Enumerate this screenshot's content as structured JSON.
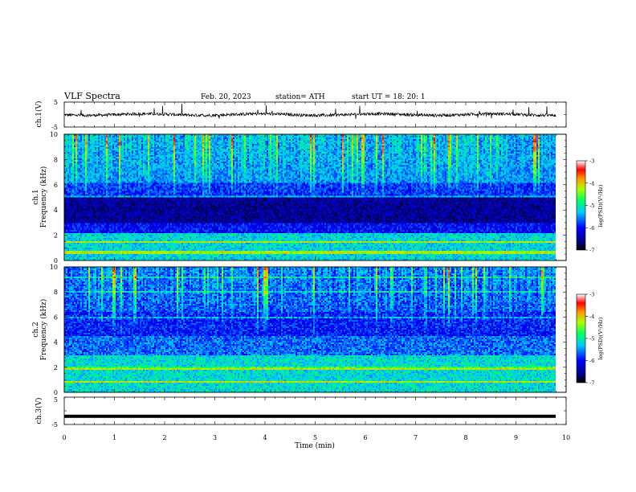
{
  "header": {
    "title": "VLF  Spectra",
    "date": "Feb. 20, 2023",
    "station": "station= ATH",
    "start": "start  UT  =     18: 20: 1"
  },
  "chart_data": {
    "type": "heatmap",
    "x_axis": {
      "label": "Time  (min)",
      "range": [
        0,
        10
      ],
      "ticks": [
        "0",
        "1",
        "2",
        "3",
        "4",
        "5",
        "6",
        "7",
        "8",
        "9",
        "10"
      ]
    },
    "panels": [
      {
        "id": "ch1-waveform",
        "type": "line",
        "ylabel": "ch.1(V)",
        "ylim": [
          -5,
          5
        ],
        "ticks": [
          "5",
          "-5"
        ],
        "x_extent": [
          0,
          9.8
        ]
      },
      {
        "id": "ch1-spectrogram",
        "type": "heatmap",
        "ylabel": "ch.1\nFrequency  (kHz)",
        "ylim": [
          0,
          10
        ],
        "ticks": [
          "0",
          "2",
          "4",
          "6",
          "8",
          "10"
        ],
        "x_extent": [
          0,
          9.8
        ],
        "colorbar": {
          "label": "log(PSD)(V²/Hz)",
          "range": [
            -7,
            -3
          ],
          "ticks": [
            "-3",
            "-4",
            "-5",
            "-6",
            "-7"
          ]
        }
      },
      {
        "id": "ch2-spectrogram",
        "type": "heatmap",
        "ylabel": "ch.2\nFrequency  (kHz)",
        "ylim": [
          0,
          10
        ],
        "ticks": [
          "0",
          "2",
          "4",
          "6",
          "8",
          "10"
        ],
        "x_extent": [
          0,
          9.8
        ],
        "colorbar": {
          "label": "log(PSD)(V²/Hz)",
          "range": [
            -7,
            -3
          ],
          "ticks": [
            "-3",
            "-4",
            "-5",
            "-6",
            "-7"
          ]
        }
      },
      {
        "id": "ch3-waveform",
        "type": "line",
        "ylabel": "ch.3(V)",
        "ylim": [
          -5,
          5
        ],
        "ticks": [
          "5",
          "-5"
        ],
        "x_extent": [
          0,
          9.8
        ],
        "level": -2
      }
    ]
  }
}
